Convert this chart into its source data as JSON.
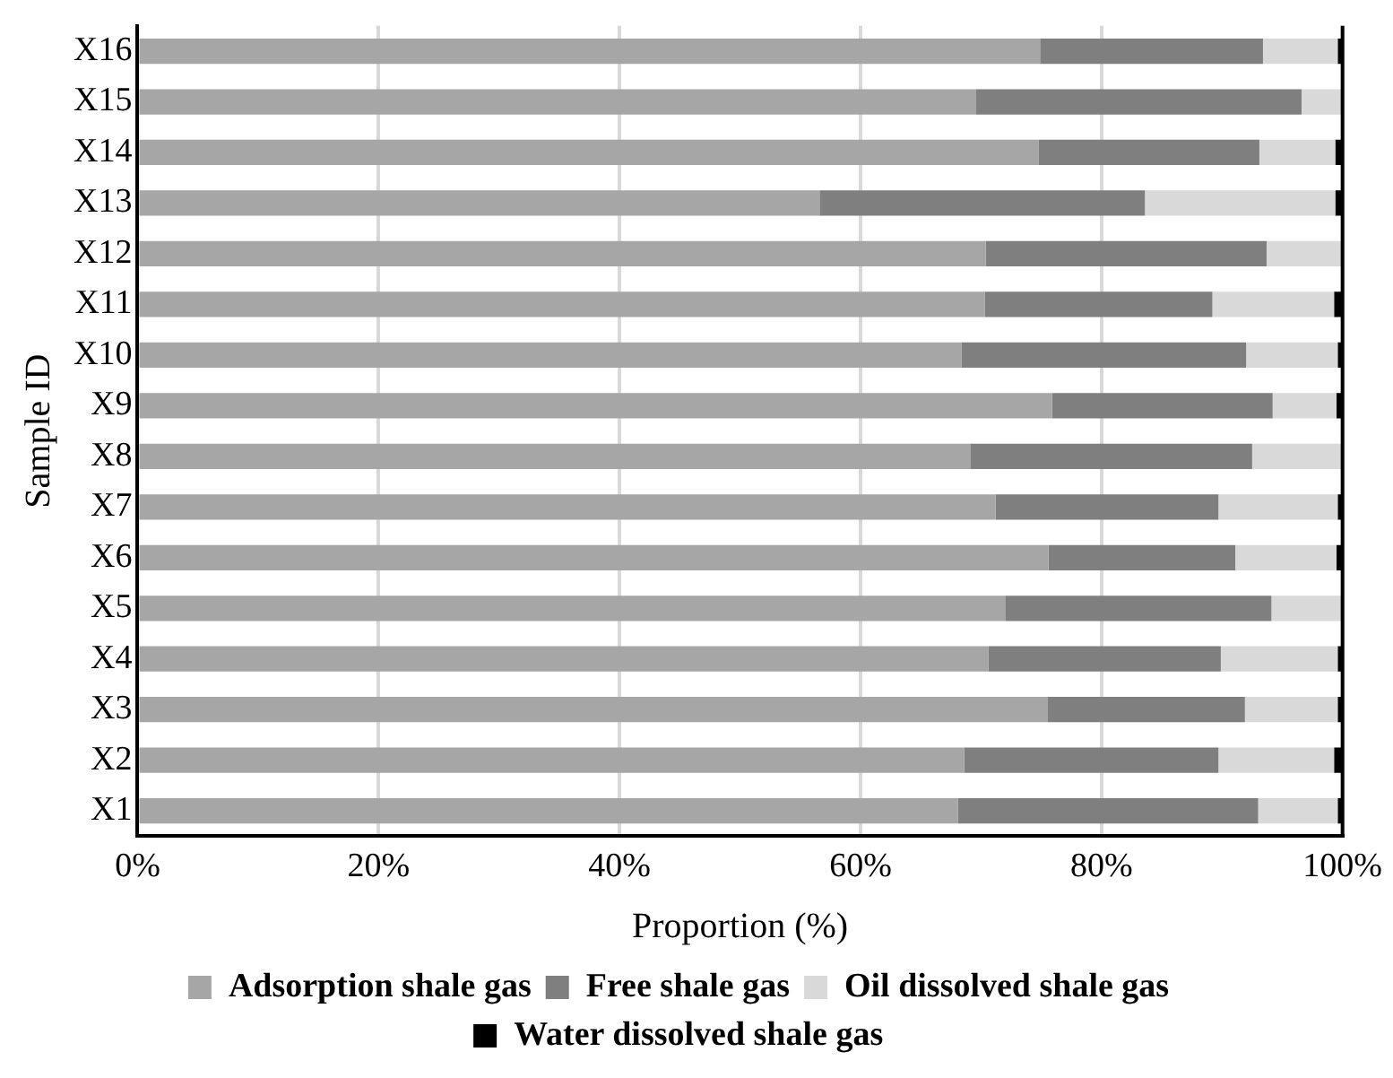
{
  "chart_data": {
    "type": "bar",
    "orientation": "horizontal",
    "stacked": true,
    "xlabel": "Proportion (%)",
    "ylabel": "Sample ID",
    "categories": [
      "X16",
      "X15",
      "X14",
      "X13",
      "X12",
      "X11",
      "X10",
      "X9",
      "X8",
      "X7",
      "X6",
      "X5",
      "X4",
      "X3",
      "X2",
      "X1"
    ],
    "series": [
      {
        "name": "Adsorption shale gas",
        "color": "#a6a6a6",
        "values": [
          74.9,
          69.6,
          74.8,
          56.6,
          70.4,
          70.3,
          68.4,
          75.9,
          69.1,
          71.2,
          75.6,
          72.0,
          70.6,
          75.5,
          68.6,
          68.1
        ]
      },
      {
        "name": "Free shale gas",
        "color": "#7f7f7f",
        "values": [
          18.5,
          27.0,
          18.3,
          27.0,
          23.3,
          18.9,
          23.6,
          18.3,
          23.4,
          18.5,
          15.5,
          22.1,
          19.3,
          16.4,
          21.1,
          24.9
        ]
      },
      {
        "name": "Oil dissolved shale gas",
        "color": "#d9d9d9",
        "values": [
          6.2,
          3.4,
          6.3,
          15.8,
          6.3,
          10.1,
          7.6,
          5.3,
          7.5,
          9.9,
          8.4,
          5.9,
          9.7,
          7.7,
          9.6,
          6.6
        ]
      },
      {
        "name": "Water dissolved shale gas",
        "color": "#000000",
        "values": [
          0.4,
          0,
          0.6,
          0.6,
          0,
          0.7,
          0.4,
          0.5,
          0,
          0.4,
          0.5,
          0,
          0.4,
          0.4,
          0.7,
          0.4
        ]
      }
    ],
    "xlim": [
      0,
      100
    ],
    "xticks": [
      {
        "value": 0,
        "label": "0%"
      },
      {
        "value": 20,
        "label": "20%"
      },
      {
        "value": 40,
        "label": "40%"
      },
      {
        "value": 60,
        "label": "60%"
      },
      {
        "value": 80,
        "label": "80%"
      },
      {
        "value": 100,
        "label": "100%"
      }
    ],
    "grid": "x",
    "legend": "bottom"
  }
}
